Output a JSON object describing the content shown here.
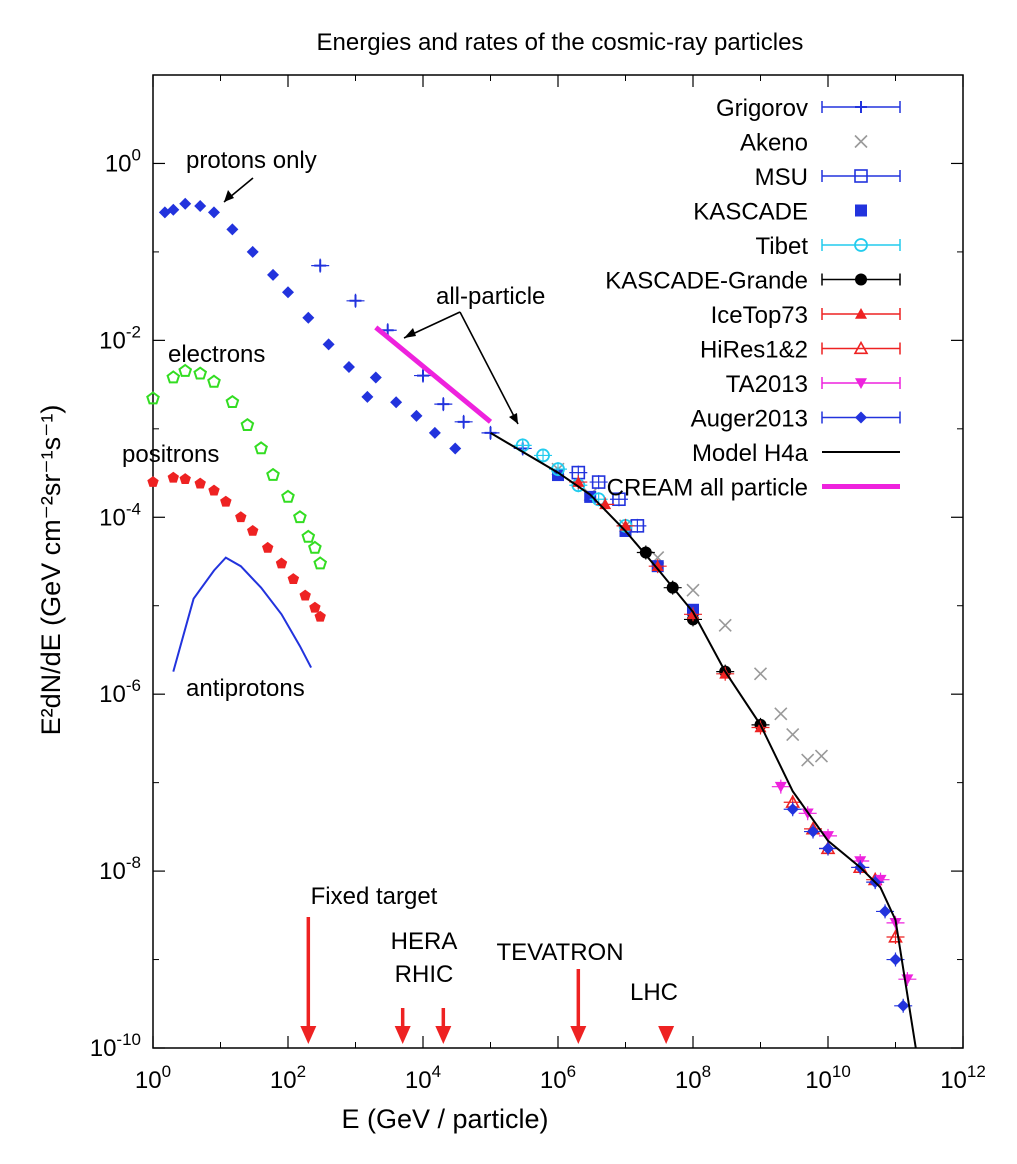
{
  "chart_data": {
    "type": "scatter",
    "title": "Energies and rates of the cosmic-ray particles",
    "xlabel": "E (GeV / particle)",
    "ylabel": "E²dN/dE (GeV cm⁻²sr⁻¹s⁻¹)",
    "xscale": "log",
    "yscale": "log",
    "xlim": [
      1,
      1000000000000.0
    ],
    "ylim": [
      1e-10,
      10
    ],
    "x_ticks": [
      {
        "value": 1,
        "base": "10",
        "exp": "0"
      },
      {
        "value": 100,
        "base": "10",
        "exp": "2"
      },
      {
        "value": 10000,
        "base": "10",
        "exp": "4"
      },
      {
        "value": 1000000,
        "base": "10",
        "exp": "6"
      },
      {
        "value": 100000000,
        "base": "10",
        "exp": "8"
      },
      {
        "value": 10000000000,
        "base": "10",
        "exp": "10"
      },
      {
        "value": 1000000000000,
        "base": "10",
        "exp": "12"
      }
    ],
    "y_ticks": [
      {
        "value": 1,
        "base": "10",
        "exp": "0"
      },
      {
        "value": 0.01,
        "base": "10",
        "exp": "-2"
      },
      {
        "value": 0.0001,
        "base": "10",
        "exp": "-4"
      },
      {
        "value": 1e-06,
        "base": "10",
        "exp": "-6"
      },
      {
        "value": 1e-08,
        "base": "10",
        "exp": "-8"
      },
      {
        "value": 1e-10,
        "base": "10",
        "exp": "-10"
      }
    ],
    "legend_position": "top-right",
    "series": [
      {
        "name": "Grigorov",
        "color": "#2233dd",
        "marker": "plus",
        "errorbars": true,
        "points": [
          [
            300,
            0.07
          ],
          [
            1000,
            0.028
          ],
          [
            3000,
            0.013
          ],
          [
            10000,
            0.004
          ],
          [
            20000,
            0.0019
          ],
          [
            40000,
            0.0012
          ],
          [
            100000,
            0.0009
          ],
          [
            300000,
            0.0006
          ]
        ]
      },
      {
        "name": "Akeno",
        "color": "#999999",
        "marker": "x",
        "errorbars": false,
        "points": [
          [
            1000000.0,
            0.00035
          ],
          [
            3000000.0,
            0.00018
          ],
          [
            10000000.0,
            8e-05
          ],
          [
            30000000.0,
            3.5e-05
          ],
          [
            100000000.0,
            1.5e-05
          ],
          [
            300000000.0,
            6e-06
          ],
          [
            1000000000.0,
            1.7e-06
          ],
          [
            2000000000.0,
            6e-07
          ],
          [
            3000000000.0,
            3.5e-07
          ],
          [
            5000000000.0,
            1.8e-07
          ],
          [
            8000000000.0,
            2e-07
          ]
        ]
      },
      {
        "name": "MSU",
        "color": "#2233dd",
        "marker": "open-square",
        "errorbars": true,
        "points": [
          [
            2000000.0,
            0.00032
          ],
          [
            4000000.0,
            0.00025
          ],
          [
            8000000.0,
            0.00016
          ],
          [
            15000000.0,
            8e-05
          ]
        ]
      },
      {
        "name": "KASCADE",
        "color": "#2233dd",
        "marker": "filled-square",
        "errorbars": false,
        "points": [
          [
            1000000.0,
            0.0003
          ],
          [
            3000000.0,
            0.00017
          ],
          [
            10000000.0,
            7e-05
          ],
          [
            30000000.0,
            2.8e-05
          ],
          [
            100000000.0,
            9e-06
          ]
        ]
      },
      {
        "name": "Tibet",
        "color": "#22ccee",
        "marker": "open-circle",
        "errorbars": true,
        "points": [
          [
            300000,
            0.00065
          ],
          [
            600000,
            0.0005
          ],
          [
            1000000.0,
            0.00035
          ],
          [
            2000000.0,
            0.00023
          ],
          [
            4000000.0,
            0.00016
          ],
          [
            10000000.0,
            8e-05
          ]
        ]
      },
      {
        "name": "KASCADE-Grande",
        "color": "#000000",
        "marker": "filled-circle",
        "errorbars": true,
        "points": [
          [
            20000000.0,
            4e-05
          ],
          [
            50000000.0,
            1.6e-05
          ],
          [
            100000000.0,
            7e-06
          ],
          [
            300000000.0,
            1.8e-06
          ],
          [
            1000000000.0,
            4.5e-07
          ]
        ]
      },
      {
        "name": "IceTop73",
        "color": "#ee2222",
        "marker": "filled-triangle",
        "errorbars": true,
        "points": [
          [
            2000000.0,
            0.00025
          ],
          [
            5000000.0,
            0.00014
          ],
          [
            10000000.0,
            8e-05
          ],
          [
            30000000.0,
            2.8e-05
          ],
          [
            100000000.0,
            8e-06
          ],
          [
            300000000.0,
            1.7e-06
          ],
          [
            1000000000.0,
            4.2e-07
          ]
        ]
      },
      {
        "name": "HiRes1&2",
        "color": "#ee2222",
        "marker": "open-triangle",
        "errorbars": true,
        "points": [
          [
            3000000000.0,
            6e-08
          ],
          [
            6000000000.0,
            3e-08
          ],
          [
            10000000000.0,
            1.8e-08
          ],
          [
            30000000000.0,
            1.1e-08
          ],
          [
            50000000000.0,
            8e-09
          ],
          [
            100000000000.0,
            1.8e-09
          ]
        ]
      },
      {
        "name": "TA2013",
        "color": "#ee22dd",
        "marker": "filled-triangle-down",
        "errorbars": true,
        "points": [
          [
            2000000000.0,
            9e-08
          ],
          [
            5000000000.0,
            4.5e-08
          ],
          [
            10000000000.0,
            2.5e-08
          ],
          [
            30000000000.0,
            1.3e-08
          ],
          [
            60000000000.0,
            8e-09
          ],
          [
            100000000000.0,
            2.6e-09
          ],
          [
            150000000000.0,
            6e-10
          ]
        ]
      },
      {
        "name": "Auger2013",
        "color": "#2233dd",
        "marker": "filled-diamond",
        "errorbars": true,
        "points": [
          [
            3000000000.0,
            5e-08
          ],
          [
            6000000000.0,
            2.8e-08
          ],
          [
            10000000000.0,
            1.8e-08
          ],
          [
            30000000000.0,
            1.1e-08
          ],
          [
            50000000000.0,
            7.5e-09
          ],
          [
            70000000000.0,
            3.5e-09
          ],
          [
            100000000000.0,
            1e-09
          ],
          [
            130000000000.0,
            3e-10
          ]
        ]
      },
      {
        "name": "Model H4a",
        "color": "#000000",
        "marker": "line",
        "errorbars": false,
        "points": [
          [
            100000,
            0.0009
          ],
          [
            1000000.0,
            0.00032
          ],
          [
            3000000.0,
            0.00018
          ],
          [
            10000000.0,
            7e-05
          ],
          [
            30000000.0,
            2.6e-05
          ],
          [
            100000000.0,
            8.5e-06
          ],
          [
            300000000.0,
            1.8e-06
          ],
          [
            1000000000.0,
            4.5e-07
          ],
          [
            3000000000.0,
            8e-08
          ],
          [
            10000000000.0,
            2.2e-08
          ],
          [
            30000000000.0,
            1.1e-08
          ],
          [
            60000000000.0,
            6.5e-09
          ],
          [
            100000000000.0,
            2.8e-09
          ],
          [
            200000000000.0,
            1e-10
          ]
        ]
      },
      {
        "name": "CREAM all particle",
        "color": "#ee22dd",
        "marker": "thick-line",
        "errorbars": false,
        "points": [
          [
            2000,
            0.014
          ],
          [
            100000,
            0.0012
          ]
        ]
      },
      {
        "name": "",
        "color": "#2233dd",
        "marker": "filled-diamond",
        "errorbars": false,
        "label": "protons only",
        "points": [
          [
            1.5,
            0.28
          ],
          [
            2,
            0.3
          ],
          [
            3,
            0.35
          ],
          [
            5,
            0.33
          ],
          [
            8,
            0.28
          ],
          [
            15,
            0.18
          ],
          [
            30,
            0.1
          ],
          [
            60,
            0.055
          ],
          [
            100,
            0.035
          ],
          [
            200,
            0.018
          ],
          [
            400,
            0.009
          ],
          [
            800,
            0.005
          ],
          [
            1500,
            0.0023
          ]
        ]
      },
      {
        "name": "",
        "color": "#2233dd",
        "marker": "filled-diamond",
        "errorbars": false,
        "points": [
          [
            2000,
            0.0038
          ],
          [
            4000,
            0.002
          ],
          [
            8000,
            0.0014
          ],
          [
            15000,
            0.0009
          ],
          [
            30000,
            0.0006
          ]
        ]
      },
      {
        "name": "",
        "color": "#33dd22",
        "marker": "open-pentagon",
        "errorbars": false,
        "label": "electrons",
        "points": [
          [
            1,
            0.0022
          ],
          [
            2,
            0.0038
          ],
          [
            3,
            0.0045
          ],
          [
            5,
            0.0042
          ],
          [
            8,
            0.0034
          ],
          [
            15,
            0.002
          ],
          [
            25,
            0.0011
          ],
          [
            40,
            0.0006
          ],
          [
            60,
            0.0003
          ],
          [
            100,
            0.00017
          ],
          [
            150,
            0.0001
          ],
          [
            200,
            6e-05
          ],
          [
            250,
            4.5e-05
          ],
          [
            300,
            3e-05
          ]
        ]
      },
      {
        "name": "",
        "color": "#ee2222",
        "marker": "filled-pentagon",
        "errorbars": false,
        "label": "positrons",
        "points": [
          [
            1,
            0.00025
          ],
          [
            2,
            0.00028
          ],
          [
            3,
            0.00027
          ],
          [
            5,
            0.00024
          ],
          [
            8,
            0.0002
          ],
          [
            12,
            0.00015
          ],
          [
            20,
            0.0001
          ],
          [
            30,
            7e-05
          ],
          [
            50,
            4.5e-05
          ],
          [
            80,
            3e-05
          ],
          [
            120,
            2e-05
          ],
          [
            180,
            1.3e-05
          ],
          [
            250,
            9.5e-06
          ],
          [
            300,
            7.5e-06
          ]
        ]
      },
      {
        "name": "",
        "color": "#2233dd",
        "marker": "line",
        "errorbars": false,
        "label": "antiprotons",
        "points": [
          [
            2,
            1.8e-06
          ],
          [
            4,
            1.2e-05
          ],
          [
            8,
            2.5e-05
          ],
          [
            12,
            3.5e-05
          ],
          [
            20,
            2.8e-05
          ],
          [
            40,
            1.6e-05
          ],
          [
            80,
            8e-06
          ],
          [
            150,
            3.5e-06
          ],
          [
            220,
            2e-06
          ]
        ]
      }
    ],
    "annotations": [
      {
        "text": "protons only"
      },
      {
        "text": "electrons"
      },
      {
        "text": "positrons"
      },
      {
        "text": "antiprotons"
      },
      {
        "text": "all-particle"
      },
      {
        "text": "Fixed target",
        "x": 200
      },
      {
        "text": "HERA",
        "x": 5000
      },
      {
        "text": "RHIC",
        "x": 20000
      },
      {
        "text": "TEVATRON",
        "x": 2000000
      },
      {
        "text": "LHC",
        "x": 40000000
      }
    ],
    "arrows_x": [
      200,
      5000,
      20000,
      2000000,
      40000000
    ]
  }
}
